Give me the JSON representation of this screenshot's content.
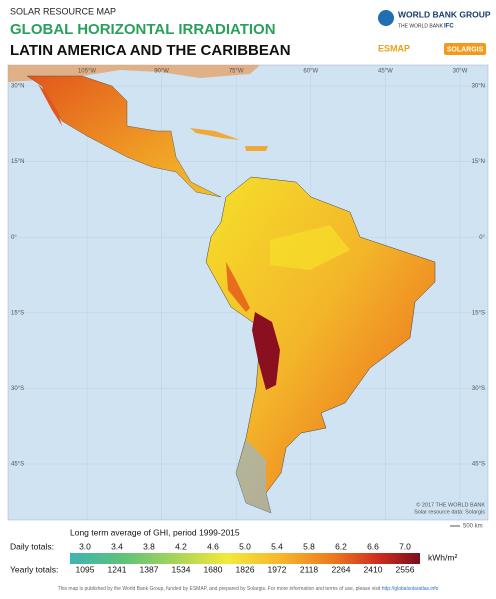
{
  "header": {
    "kicker": "SOLAR RESOURCE MAP",
    "title": "GLOBAL HORIZONTAL IRRADIATION",
    "subtitle": "LATIN AMERICA AND THE CARIBBEAN"
  },
  "logos": {
    "wbg": "WORLD BANK GROUP",
    "wb": "THE WORLD BANK",
    "ifc": "IFC",
    "esmap": "ESMAP",
    "solargis": "SOLARGIS"
  },
  "map": {
    "longitudes": [
      "105°W",
      "90°W",
      "75°W",
      "60°W",
      "45°W",
      "30°W"
    ],
    "latitudes": [
      "30°N",
      "15°N",
      "0°",
      "15°S",
      "30°S",
      "45°S"
    ],
    "copyright": "© 2017 THE WORLD BANK",
    "source": "Solar resource data: Solargis",
    "scale": "500 km"
  },
  "legend": {
    "caption": "Long term average of GHI, period 1999-2015",
    "daily_label": "Daily totals:",
    "daily": [
      "3.0",
      "3.4",
      "3.8",
      "4.2",
      "4.6",
      "5.0",
      "5.4",
      "5.8",
      "6.2",
      "6.6",
      "7.0"
    ],
    "unit": "kWh/m²",
    "yearly_label": "Yearly totals:",
    "yearly": [
      1095,
      1241,
      1387,
      1534,
      1680,
      1826,
      1972,
      2118,
      2264,
      2410,
      2556
    ]
  },
  "footer": {
    "text": "This map is published by the World Bank Group, funded by ESMAP, and prepared by Solargis. For more information and terms of use, please visit ",
    "link": "http://globalsolaratlas.info"
  }
}
